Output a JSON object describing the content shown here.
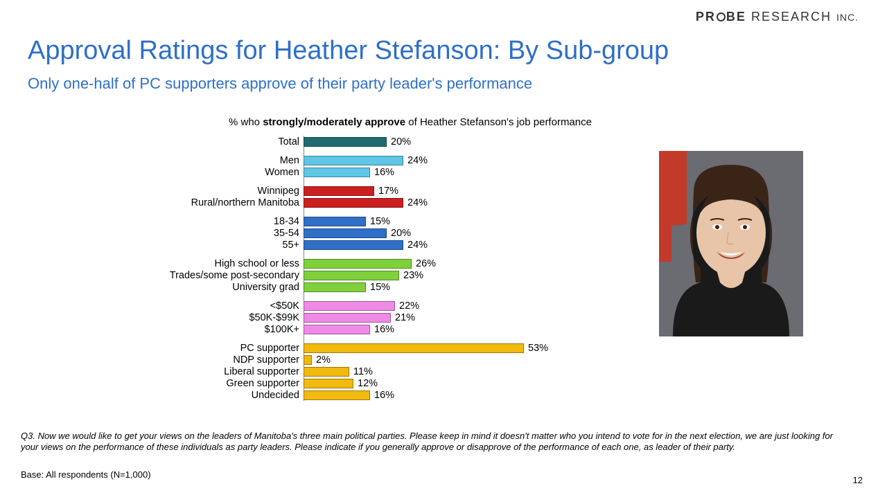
{
  "brand": {
    "word1": "PR",
    "word2": "BE",
    "word3": "RESEARCH",
    "word4": "INC."
  },
  "title": "Approval Ratings for Heather Stefanson: By Sub-group",
  "subtitle": "Only one-half of PC supporters approve of their party leader's performance",
  "chart": {
    "caption_prefix": "% who ",
    "caption_bold": "strongly/moderately approve",
    "caption_suffix": " of Heather Stefanson's job performance",
    "max_value": 60,
    "bar_pixel_scale": 6.0,
    "bar_border_color": "rgba(0,0,0,0.35)",
    "groups": [
      {
        "color": "#1f6b70",
        "rows": [
          {
            "label": "Total",
            "value": 20
          }
        ]
      },
      {
        "color": "#5ec6e6",
        "rows": [
          {
            "label": "Men",
            "value": 24
          },
          {
            "label": "Women",
            "value": 16
          }
        ]
      },
      {
        "color": "#cc1f1f",
        "rows": [
          {
            "label": "Winnipeg",
            "value": 17
          },
          {
            "label": "Rural/northern Manitoba",
            "value": 24
          }
        ]
      },
      {
        "color": "#2e6fc7",
        "rows": [
          {
            "label": "18-34",
            "value": 15
          },
          {
            "label": "35-54",
            "value": 20
          },
          {
            "label": "55+",
            "value": 24
          }
        ]
      },
      {
        "color": "#7fd13b",
        "rows": [
          {
            "label": "High school or less",
            "value": 26
          },
          {
            "label": "Trades/some post-secondary",
            "value": 23
          },
          {
            "label": "University grad",
            "value": 15
          }
        ]
      },
      {
        "color": "#ef8be6",
        "rows": [
          {
            "label": "<$50K",
            "value": 22
          },
          {
            "label": "$50K-$99K",
            "value": 21
          },
          {
            "label": "$100K+",
            "value": 16
          }
        ]
      },
      {
        "color": "#f2b90f",
        "rows": [
          {
            "label": "PC supporter",
            "value": 53
          },
          {
            "label": "NDP supporter",
            "value": 2
          },
          {
            "label": "Liberal supporter",
            "value": 11
          },
          {
            "label": "Green supporter",
            "value": 12
          },
          {
            "label": "Undecided",
            "value": 16
          }
        ]
      }
    ]
  },
  "footnote": "Q3. Now we would like to get your views on the leaders of Manitoba's three main political parties.  Please keep in mind it doesn't matter who you intend to vote for in the next election, we are just looking for your views on the performance of these individuals as party leaders. Please indicate if you generally approve or disapprove of the performance of each one, as leader of their party.",
  "base_text": "Base: All respondents (N=1,000)",
  "page_number": "12",
  "photo": {
    "background": "#6b6b72",
    "flag_color": "#c23a2a",
    "skin": "#e8c4a8",
    "hair": "#3a2418",
    "jacket": "#1a1a1a",
    "lip": "#a8453a",
    "teeth": "#ffffff"
  }
}
